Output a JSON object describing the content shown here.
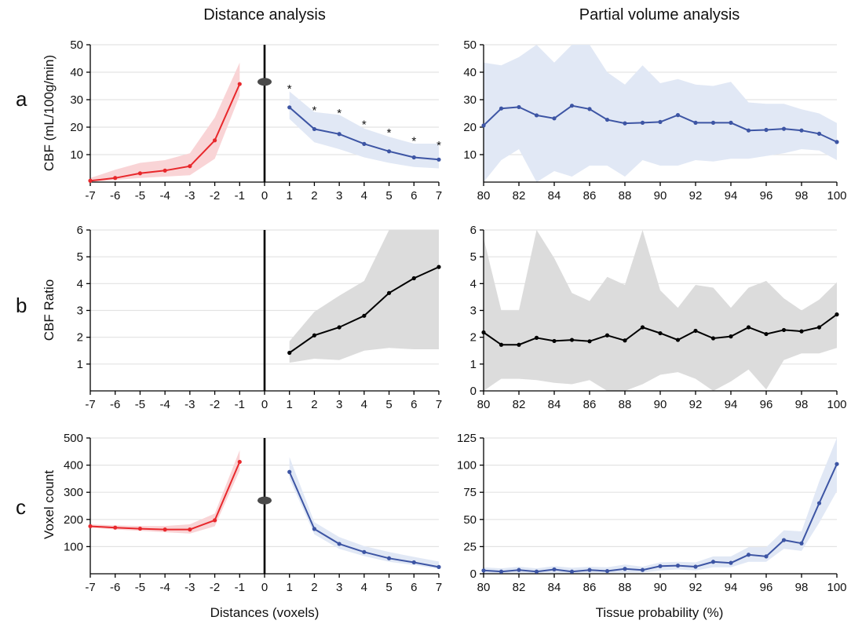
{
  "titles": {
    "left": "Distance analysis",
    "right": "Partial volume analysis"
  },
  "xlabels": {
    "left": "Distances (voxels)",
    "right": "Tissue probability (%)"
  },
  "colors": {
    "red": "#e8282c",
    "red_band": "#f9d4d6",
    "blue": "#3d55a4",
    "blue_band": "#e1e8f5",
    "black": "#000000",
    "gray_band": "#dcdcdc",
    "grid": "#e3e3e3"
  },
  "chart_data": [
    {
      "id": "a-left",
      "row": "a",
      "panel_letter": "a",
      "type": "line",
      "ylabel": "CBF (mL/100g/min)",
      "xlim": [
        -7,
        7
      ],
      "ylim": [
        0,
        50
      ],
      "x_ticks": [
        -7,
        -6,
        -5,
        -4,
        -3,
        -2,
        -1,
        0,
        1,
        2,
        3,
        4,
        5,
        6,
        7
      ],
      "y_ticks": [
        10,
        20,
        30,
        40,
        50
      ],
      "grid": "horizontal",
      "zero_marker": 36.5,
      "series": [
        {
          "color": "red",
          "band_color": "red_band",
          "x": [
            -7,
            -6,
            -5,
            -4,
            -3,
            -2,
            -1
          ],
          "y": [
            0.5,
            1.5,
            3.2,
            4.2,
            5.8,
            15.2,
            35.7
          ],
          "lower": [
            0,
            0.8,
            1.5,
            2.0,
            2.5,
            8.5,
            31.5
          ],
          "upper": [
            1.5,
            4.5,
            7.0,
            8.0,
            10.5,
            23.5,
            43.5
          ]
        },
        {
          "color": "blue",
          "band_color": "blue_band",
          "x": [
            1,
            2,
            3,
            4,
            5,
            6,
            7
          ],
          "y": [
            27.2,
            19.3,
            17.5,
            13.9,
            11.2,
            9.0,
            8.2
          ],
          "lower": [
            23.0,
            14.5,
            12.0,
            9.0,
            7.0,
            5.5,
            5.0
          ],
          "upper": [
            33.0,
            25.5,
            24.5,
            19.5,
            16.5,
            14.0,
            14.0
          ]
        }
      ],
      "annotations": [
        {
          "x": 1,
          "y": 34.8,
          "text": "*"
        },
        {
          "x": 2,
          "y": 27.0,
          "text": "*"
        },
        {
          "x": 3,
          "y": 26.0,
          "text": "*"
        },
        {
          "x": 4,
          "y": 21.8,
          "text": "*"
        },
        {
          "x": 5,
          "y": 18.8,
          "text": "*"
        },
        {
          "x": 6,
          "y": 15.8,
          "text": "*"
        },
        {
          "x": 7,
          "y": 14.3,
          "text": "*"
        }
      ]
    },
    {
      "id": "a-right",
      "row": "a",
      "type": "line",
      "xlim": [
        80,
        100
      ],
      "ylim": [
        0,
        50
      ],
      "x_ticks": [
        80,
        82,
        84,
        86,
        88,
        90,
        92,
        94,
        96,
        98,
        100
      ],
      "y_ticks": [
        10,
        20,
        30,
        40,
        50
      ],
      "grid": "horizontal",
      "series": [
        {
          "color": "blue",
          "band_color": "blue_band",
          "x": [
            80,
            81,
            82,
            83,
            84,
            85,
            86,
            87,
            88,
            89,
            90,
            91,
            92,
            93,
            94,
            95,
            96,
            97,
            98,
            99,
            100
          ],
          "y": [
            20.6,
            26.8,
            27.3,
            24.3,
            23.2,
            27.8,
            26.6,
            22.7,
            21.4,
            21.6,
            21.9,
            24.4,
            21.6,
            21.6,
            21.6,
            18.8,
            19.0,
            19.4,
            18.8,
            17.6,
            14.6
          ],
          "lower": [
            0.0,
            8.0,
            12.0,
            0.0,
            4.0,
            2.0,
            6.0,
            6.0,
            2.0,
            8.0,
            6.0,
            6.0,
            8.0,
            7.5,
            8.5,
            8.5,
            9.5,
            10.5,
            12.0,
            11.5,
            8.0
          ],
          "upper": [
            43.5,
            42.5,
            45.5,
            50.5,
            43.5,
            50.5,
            50.5,
            40.0,
            35.5,
            42.5,
            36.0,
            37.5,
            35.5,
            35.0,
            36.5,
            29.0,
            28.5,
            28.5,
            26.5,
            25.0,
            21.5
          ]
        }
      ]
    },
    {
      "id": "b-left",
      "row": "b",
      "panel_letter": "b",
      "type": "line",
      "ylabel": "CBF Ratio",
      "xlim": [
        -7,
        7
      ],
      "ylim": [
        0,
        6
      ],
      "x_ticks": [
        -7,
        -6,
        -5,
        -4,
        -3,
        -2,
        -1,
        0,
        1,
        2,
        3,
        4,
        5,
        6,
        7
      ],
      "y_ticks": [
        1,
        2,
        3,
        4,
        5,
        6
      ],
      "grid": "horizontal",
      "series": [
        {
          "color": "black",
          "band_color": "gray_band",
          "x": [
            1,
            2,
            3,
            4,
            5,
            6,
            7
          ],
          "y": [
            1.42,
            2.07,
            2.37,
            2.8,
            3.65,
            4.2,
            4.62
          ],
          "lower": [
            1.05,
            1.2,
            1.15,
            1.5,
            1.6,
            1.55,
            1.55
          ],
          "upper": [
            1.85,
            2.95,
            3.55,
            4.1,
            6.0,
            6.0,
            6.0
          ]
        }
      ]
    },
    {
      "id": "b-right",
      "row": "b",
      "type": "line",
      "xlim": [
        80,
        100
      ],
      "ylim": [
        0,
        6
      ],
      "x_ticks": [
        80,
        82,
        84,
        86,
        88,
        90,
        92,
        94,
        96,
        98,
        100
      ],
      "y_ticks": [
        0,
        1,
        2,
        3,
        4,
        5,
        6
      ],
      "grid": "horizontal",
      "series": [
        {
          "color": "black",
          "band_color": "gray_band",
          "x": [
            80,
            81,
            82,
            83,
            84,
            85,
            86,
            87,
            88,
            89,
            90,
            91,
            92,
            93,
            94,
            95,
            96,
            97,
            98,
            99,
            100
          ],
          "y": [
            2.18,
            1.72,
            1.72,
            1.98,
            1.86,
            1.9,
            1.85,
            2.07,
            1.88,
            2.37,
            2.15,
            1.9,
            2.24,
            1.96,
            2.03,
            2.37,
            2.12,
            2.27,
            2.22,
            2.37,
            2.85
          ],
          "lower": [
            0.0,
            0.45,
            0.45,
            0.4,
            0.3,
            0.25,
            0.4,
            0.0,
            0.0,
            0.25,
            0.6,
            0.7,
            0.45,
            0.0,
            0.35,
            0.8,
            0.05,
            1.15,
            1.4,
            1.4,
            1.6
          ],
          "upper": [
            5.7,
            3.0,
            3.0,
            6.0,
            4.95,
            3.65,
            3.35,
            4.25,
            3.95,
            6.0,
            3.75,
            3.1,
            3.95,
            3.85,
            3.1,
            3.85,
            4.1,
            3.45,
            3.0,
            3.4,
            4.05
          ]
        }
      ]
    },
    {
      "id": "c-left",
      "row": "c",
      "panel_letter": "c",
      "type": "line",
      "ylabel": "Voxel count",
      "xlim": [
        -7,
        7
      ],
      "ylim": [
        0,
        500
      ],
      "x_ticks": [
        -7,
        -6,
        -5,
        -4,
        -3,
        -2,
        -1,
        0,
        1,
        2,
        3,
        4,
        5,
        6,
        7
      ],
      "y_ticks": [
        100,
        200,
        300,
        400,
        500
      ],
      "grid": "horizontal",
      "zero_marker": 270,
      "series": [
        {
          "color": "red",
          "band_color": "red_band",
          "x": [
            -7,
            -6,
            -5,
            -4,
            -3,
            -2,
            -1
          ],
          "y": [
            175,
            170,
            166,
            163,
            163,
            197,
            412
          ],
          "lower": [
            170,
            163,
            158,
            153,
            148,
            175,
            380
          ],
          "upper": [
            182,
            178,
            176,
            176,
            182,
            222,
            455
          ]
        },
        {
          "color": "blue",
          "band_color": "blue_band",
          "x": [
            1,
            2,
            3,
            4,
            5,
            6,
            7
          ],
          "y": [
            375,
            165,
            110,
            80,
            57,
            42,
            25
          ],
          "lower": [
            350,
            145,
            92,
            65,
            44,
            32,
            18
          ],
          "upper": [
            430,
            190,
            135,
            102,
            80,
            62,
            45
          ]
        }
      ]
    },
    {
      "id": "c-right",
      "row": "c",
      "type": "line",
      "xlim": [
        80,
        100
      ],
      "ylim": [
        0,
        125
      ],
      "x_ticks": [
        80,
        82,
        84,
        86,
        88,
        90,
        92,
        94,
        96,
        98,
        100
      ],
      "y_ticks": [
        0,
        25,
        50,
        75,
        100,
        125
      ],
      "grid": "horizontal",
      "series": [
        {
          "color": "blue",
          "band_color": "blue_band",
          "x": [
            80,
            81,
            82,
            83,
            84,
            85,
            86,
            87,
            88,
            89,
            90,
            91,
            92,
            93,
            94,
            95,
            96,
            97,
            98,
            99,
            100
          ],
          "y": [
            3,
            2,
            3.5,
            2,
            4,
            2,
            3.5,
            2.5,
            4.5,
            3.5,
            7,
            7.5,
            6.5,
            11,
            10,
            17.5,
            16,
            31,
            28,
            65,
            101
          ],
          "lower": [
            0,
            0,
            0,
            0,
            0.5,
            0,
            0.5,
            0.5,
            1,
            1,
            3,
            4,
            3,
            6,
            6,
            11,
            11,
            23,
            21,
            47,
            76
          ],
          "upper": [
            6,
            5,
            6.5,
            5,
            7,
            5.5,
            6.5,
            6,
            8.5,
            6.5,
            10.5,
            11,
            10.5,
            16,
            16,
            24.5,
            24.5,
            40,
            39,
            85,
            125
          ]
        }
      ]
    }
  ]
}
